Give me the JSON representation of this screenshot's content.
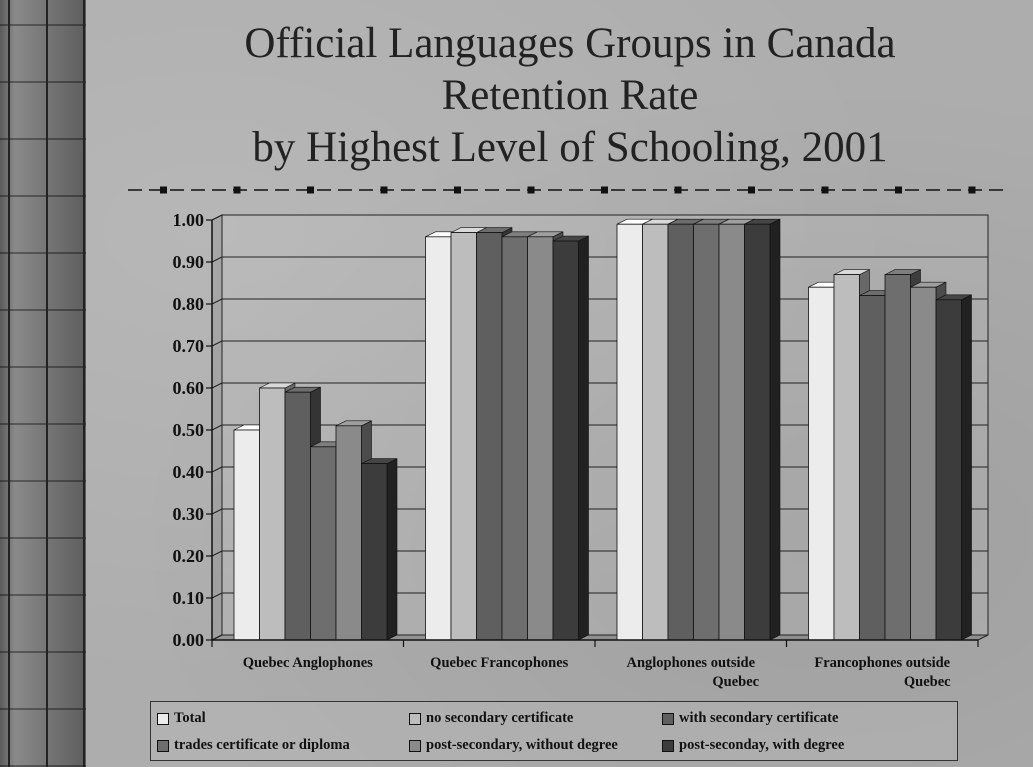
{
  "slide": {
    "title_lines": [
      "Official Languages Groups in Canada",
      "Retention Rate",
      "by Highest Level of Schooling, 2001"
    ]
  },
  "chart_data": {
    "type": "bar",
    "categories": [
      [
        "Quebec Anglophones"
      ],
      [
        "Quebec Francophones"
      ],
      [
        "Anglophones outside",
        "Quebec"
      ],
      [
        "Francophones outside",
        "Quebec"
      ]
    ],
    "series": [
      {
        "name": "Total",
        "color": "#ececec",
        "values": [
          0.5,
          0.96,
          0.99,
          0.84
        ]
      },
      {
        "name": "no secondary certificate",
        "color": "#bdbdbd",
        "values": [
          0.6,
          0.97,
          0.99,
          0.87
        ]
      },
      {
        "name": "with secondary certificate",
        "color": "#5f5f5f",
        "values": [
          0.59,
          0.97,
          0.99,
          0.82
        ]
      },
      {
        "name": "trades certificate or diploma",
        "color": "#6e6e6e",
        "values": [
          0.46,
          0.96,
          0.99,
          0.87
        ]
      },
      {
        "name": "post-secondary, without degree",
        "color": "#8a8a8a",
        "values": [
          0.51,
          0.96,
          0.99,
          0.84
        ]
      },
      {
        "name": "post-seconday, with degree",
        "color": "#3c3c3c",
        "values": [
          0.42,
          0.95,
          0.99,
          0.81
        ]
      }
    ],
    "ylim": [
      0,
      1.0
    ],
    "yticks": [
      "0.00",
      "0.10",
      "0.20",
      "0.30",
      "0.40",
      "0.50",
      "0.60",
      "0.70",
      "0.80",
      "0.90",
      "1.00"
    ],
    "grid": true,
    "legend_position": "bottom"
  }
}
